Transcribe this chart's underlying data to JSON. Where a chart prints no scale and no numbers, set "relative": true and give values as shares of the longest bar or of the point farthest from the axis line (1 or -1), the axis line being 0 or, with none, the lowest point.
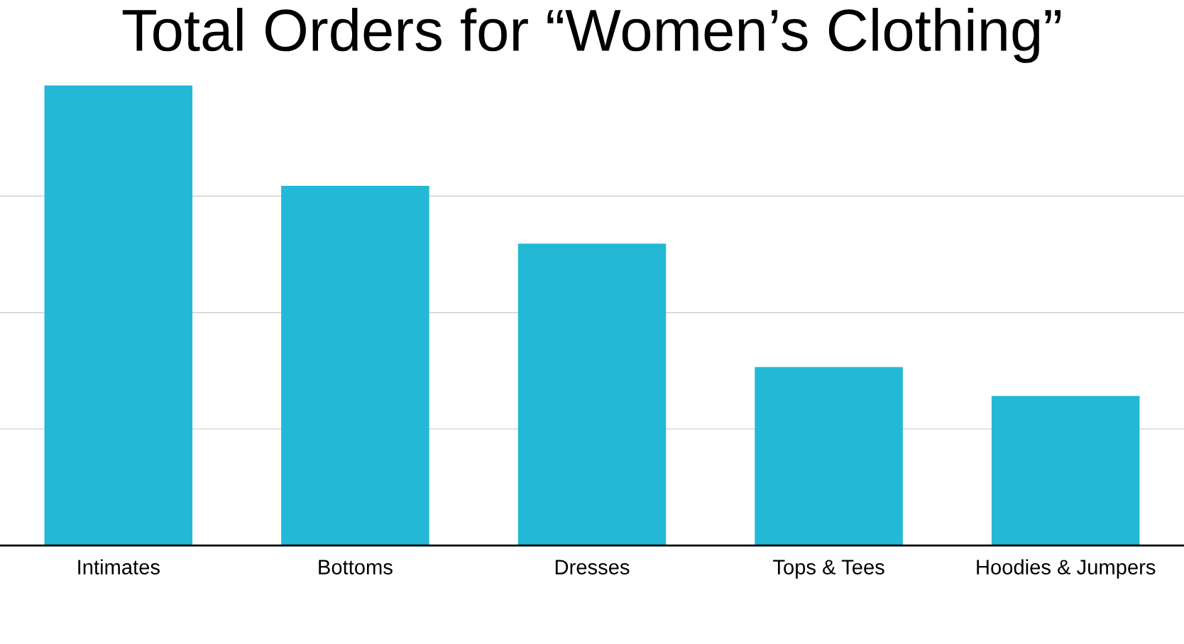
{
  "chart_data": {
    "type": "bar",
    "title": "Total Orders for “Women’s Clothing”",
    "categories": [
      "Intimates",
      "Bottoms",
      "Dresses",
      "Tops & Tees",
      "Hoodies & Jumpers"
    ],
    "values": [
      1,
      0.782,
      0.656,
      0.388,
      0.325
    ],
    "color": "#23b8d5",
    "relative": true,
    "grid": "y",
    "legend": false
  }
}
